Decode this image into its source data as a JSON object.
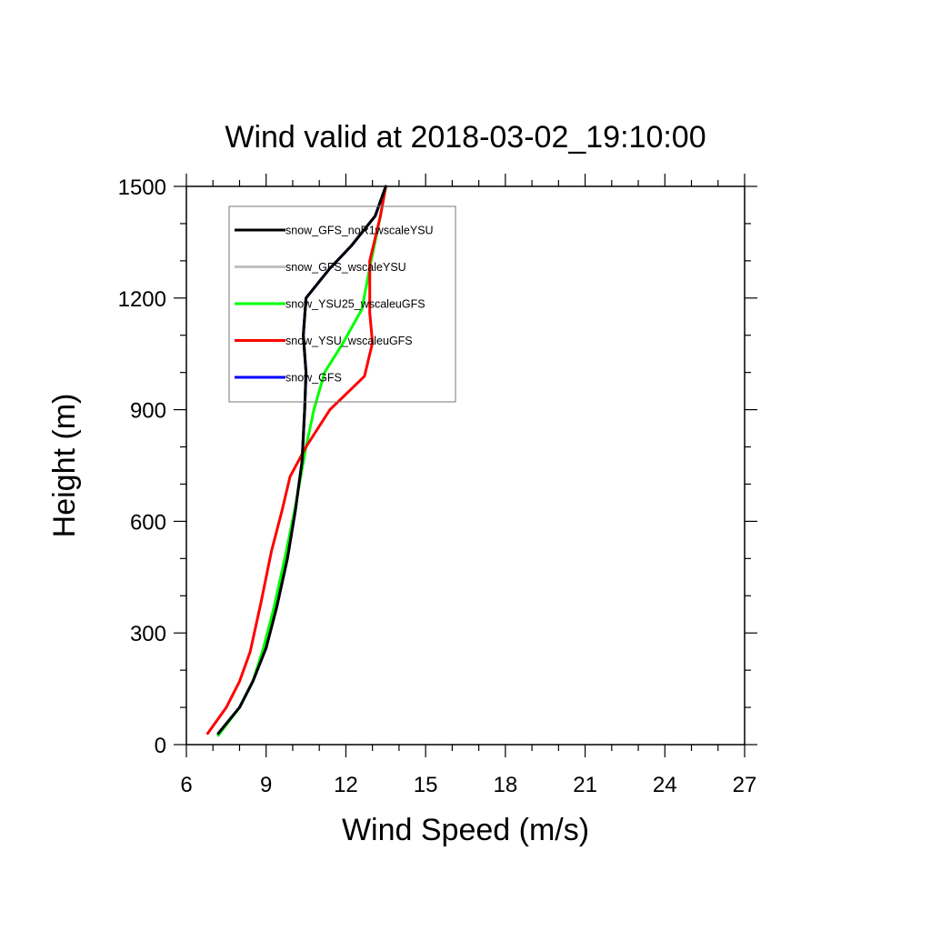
{
  "chart_data": {
    "type": "line",
    "title": "Wind valid at 2018-03-02_19:10:00",
    "xlabel": "Wind Speed (m/s)",
    "ylabel": "Height (m)",
    "xlim": [
      6,
      27
    ],
    "ylim": [
      0,
      1500
    ],
    "xticks": [
      6,
      9,
      12,
      15,
      18,
      21,
      24,
      27
    ],
    "yticks": [
      0,
      300,
      600,
      900,
      1200,
      1500
    ],
    "grid": false,
    "legend_position": "top-left",
    "series": [
      {
        "name": "snow_GFS_wscaleYSU",
        "color": "#c0c0c0",
        "points": [
          [
            7.2,
            30
          ],
          [
            8.0,
            100
          ],
          [
            8.5,
            170
          ],
          [
            9.0,
            260
          ],
          [
            9.4,
            370
          ],
          [
            9.8,
            500
          ],
          [
            10.1,
            630
          ],
          [
            10.35,
            760
          ],
          [
            10.45,
            900
          ],
          [
            10.5,
            1000
          ],
          [
            10.4,
            1100
          ],
          [
            10.5,
            1200
          ],
          [
            11.4,
            1280
          ],
          [
            12.2,
            1340
          ],
          [
            13.1,
            1420
          ],
          [
            13.5,
            1500
          ]
        ]
      },
      {
        "name": "snow_GFS",
        "color": "#0000ff",
        "points": [
          [
            7.2,
            30
          ],
          [
            8.0,
            100
          ],
          [
            8.5,
            170
          ],
          [
            9.0,
            260
          ],
          [
            9.4,
            370
          ],
          [
            9.8,
            500
          ],
          [
            10.1,
            630
          ],
          [
            10.35,
            760
          ],
          [
            10.45,
            900
          ],
          [
            10.5,
            1000
          ],
          [
            10.4,
            1100
          ],
          [
            10.5,
            1200
          ],
          [
            11.4,
            1280
          ],
          [
            12.2,
            1340
          ],
          [
            13.1,
            1420
          ],
          [
            13.5,
            1500
          ]
        ]
      },
      {
        "name": "snow_YSU25_wscaleuGFS",
        "color": "#00ff00",
        "points": [
          [
            7.2,
            25
          ],
          [
            8.0,
            100
          ],
          [
            8.5,
            170
          ],
          [
            8.9,
            260
          ],
          [
            9.3,
            370
          ],
          [
            9.7,
            500
          ],
          [
            10.1,
            640
          ],
          [
            10.5,
            800
          ],
          [
            10.8,
            900
          ],
          [
            11.2,
            1000
          ],
          [
            11.9,
            1080
          ],
          [
            12.6,
            1170
          ],
          [
            12.95,
            1300
          ],
          [
            13.3,
            1420
          ],
          [
            13.5,
            1500
          ]
        ]
      },
      {
        "name": "snow_YSU_wscaleuGFS",
        "color": "#ff0000",
        "points": [
          [
            6.8,
            30
          ],
          [
            7.5,
            100
          ],
          [
            8.0,
            170
          ],
          [
            8.4,
            250
          ],
          [
            8.8,
            380
          ],
          [
            9.2,
            520
          ],
          [
            9.6,
            630
          ],
          [
            9.9,
            720
          ],
          [
            10.5,
            800
          ],
          [
            11.4,
            900
          ],
          [
            12.7,
            990
          ],
          [
            13.0,
            1080
          ],
          [
            12.9,
            1160
          ],
          [
            12.9,
            1300
          ],
          [
            13.3,
            1420
          ],
          [
            13.5,
            1500
          ]
        ]
      },
      {
        "name": "snow_GFS_noR1wscaleYSU",
        "color": "#000000",
        "points": [
          [
            7.2,
            30
          ],
          [
            8.0,
            100
          ],
          [
            8.5,
            170
          ],
          [
            9.0,
            260
          ],
          [
            9.4,
            370
          ],
          [
            9.8,
            500
          ],
          [
            10.1,
            630
          ],
          [
            10.35,
            760
          ],
          [
            10.45,
            900
          ],
          [
            10.5,
            1000
          ],
          [
            10.4,
            1100
          ],
          [
            10.5,
            1200
          ],
          [
            11.4,
            1280
          ],
          [
            12.2,
            1340
          ],
          [
            13.1,
            1420
          ],
          [
            13.5,
            1500
          ]
        ]
      }
    ],
    "legend": [
      {
        "name": "snow_GFS_noR1wscaleYSU",
        "color": "#000000"
      },
      {
        "name": "snow_GFS_wscaleYSU",
        "color": "#c0c0c0"
      },
      {
        "name": "snow_YSU25_wscaleuGFS",
        "color": "#00ff00"
      },
      {
        "name": "snow_YSU_wscaleuGFS",
        "color": "#ff0000"
      },
      {
        "name": "snow_GFS",
        "color": "#0000ff"
      }
    ]
  }
}
